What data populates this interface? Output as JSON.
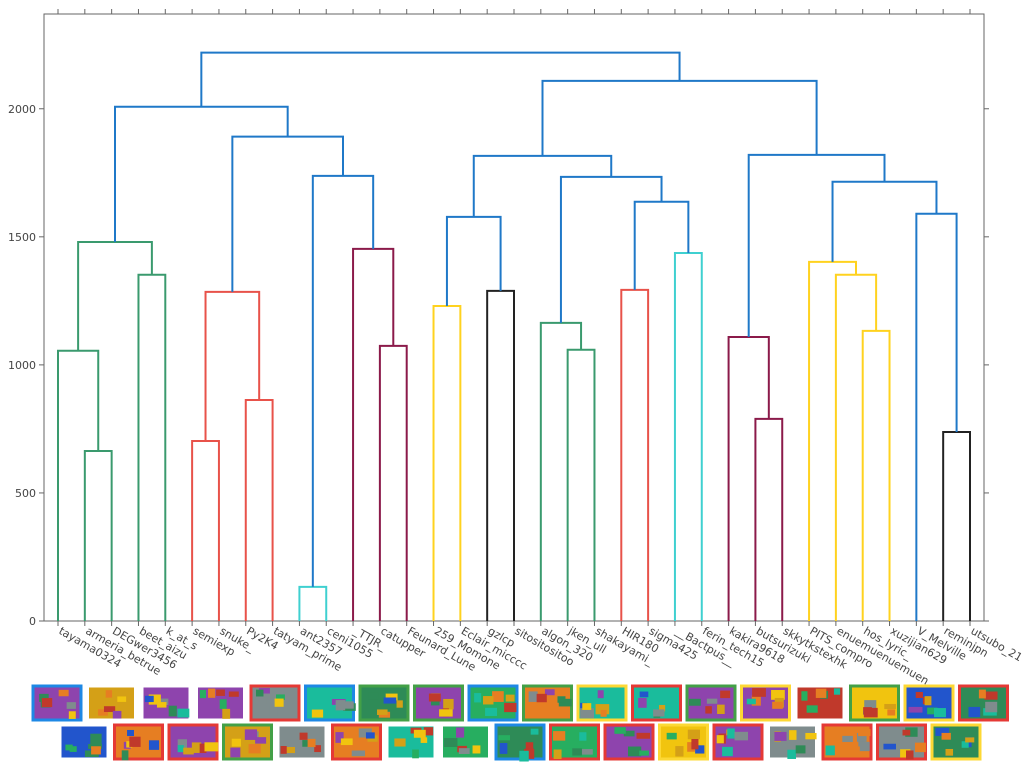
{
  "chart_data": {
    "type": "dendrogram",
    "leaves": [
      "tayama0324",
      "armeria_betrue",
      "DEGwer3456",
      "beet_aizu",
      "k_at_s",
      "semiexp",
      "snuke_",
      "Py2K4",
      "tatyam_prime",
      "ant2357",
      "ceni1055",
      "_TTJR_",
      "catupper",
      "Feunard_Lune",
      "259_Momone",
      "Eclair_micccc",
      "gzlcp",
      "sitositositoo",
      "algon_320",
      "jken_ull",
      "shakayami_",
      "HIR180",
      "sigma425",
      "__Bactpus__",
      "ferin_tech15",
      "kakira9618",
      "butsurizuki",
      "skkytkstexhk",
      "PITS_compro",
      "enuemuenuemuen",
      "hos_lyric_",
      "xuzijian629",
      "V_Melville",
      "reminjpn",
      "utsubo_21"
    ],
    "links": [
      {
        "children": [
          1,
          2
        ],
        "height": 664,
        "color": "#3a9a6e"
      },
      {
        "children": [
          0,
          35
        ],
        "height": 1055,
        "color": "#3a9a6e"
      },
      {
        "children": [
          3,
          4
        ],
        "height": 1352,
        "color": "#3a9a6e"
      },
      {
        "children": [
          36,
          37
        ],
        "height": 1480,
        "color": "#3a9a6e"
      },
      {
        "children": [
          5,
          6
        ],
        "height": 703,
        "color": "#e8524a"
      },
      {
        "children": [
          7,
          8
        ],
        "height": 863,
        "color": "#e8524a"
      },
      {
        "children": [
          39,
          40
        ],
        "height": 1285,
        "color": "#e8524a"
      },
      {
        "children": [
          9,
          10
        ],
        "height": 133,
        "color": "#3fd0d0"
      },
      {
        "children": [
          12,
          13
        ],
        "height": 1074,
        "color": "#8b1a4a"
      },
      {
        "children": [
          11,
          43
        ],
        "height": 1453,
        "color": "#8b1a4a"
      },
      {
        "children": [
          42,
          44
        ],
        "height": 1738,
        "color": "#1f78c8"
      },
      {
        "children": [
          41,
          45
        ],
        "height": 1891,
        "color": "#1f78c8"
      },
      {
        "children": [
          38,
          46
        ],
        "height": 2008,
        "color": "#1f78c8"
      },
      {
        "children": [
          14,
          15
        ],
        "height": 1230,
        "color": "#ffd21f"
      },
      {
        "children": [
          16,
          17
        ],
        "height": 1289,
        "color": "#222222"
      },
      {
        "children": [
          48,
          49
        ],
        "height": 1578,
        "color": "#1f78c8"
      },
      {
        "children": [
          19,
          20
        ],
        "height": 1059,
        "color": "#3a9a6e"
      },
      {
        "children": [
          18,
          51
        ],
        "height": 1164,
        "color": "#3a9a6e"
      },
      {
        "children": [
          21,
          22
        ],
        "height": 1293,
        "color": "#e8524a"
      },
      {
        "children": [
          23,
          24
        ],
        "height": 1437,
        "color": "#3fd0d0"
      },
      {
        "children": [
          53,
          54
        ],
        "height": 1637,
        "color": "#1f78c8"
      },
      {
        "children": [
          52,
          55
        ],
        "height": 1734,
        "color": "#1f78c8"
      },
      {
        "children": [
          50,
          56
        ],
        "height": 1816,
        "color": "#1f78c8"
      },
      {
        "children": [
          26,
          27
        ],
        "height": 789,
        "color": "#8b1a4a"
      },
      {
        "children": [
          25,
          58
        ],
        "height": 1109,
        "color": "#8b1a4a"
      },
      {
        "children": [
          30,
          31
        ],
        "height": 1133,
        "color": "#ffd21f"
      },
      {
        "children": [
          29,
          60
        ],
        "height": 1352,
        "color": "#ffd21f"
      },
      {
        "children": [
          28,
          61
        ],
        "height": 1402,
        "color": "#ffd21f"
      },
      {
        "children": [
          33,
          34
        ],
        "height": 738,
        "color": "#222222"
      },
      {
        "children": [
          32,
          63
        ],
        "height": 1590,
        "color": "#1f78c8"
      },
      {
        "children": [
          62,
          64
        ],
        "height": 1715,
        "color": "#1f78c8"
      },
      {
        "children": [
          59,
          65
        ],
        "height": 1820,
        "color": "#1f78c8"
      },
      {
        "children": [
          57,
          66
        ],
        "height": 2109,
        "color": "#1f78c8"
      },
      {
        "children": [
          47,
          67
        ],
        "height": 2219,
        "color": "#1f78c8"
      }
    ],
    "ylim": [
      0,
      2370
    ],
    "yticks": [
      0,
      500,
      1000,
      1500,
      2000
    ]
  }
}
